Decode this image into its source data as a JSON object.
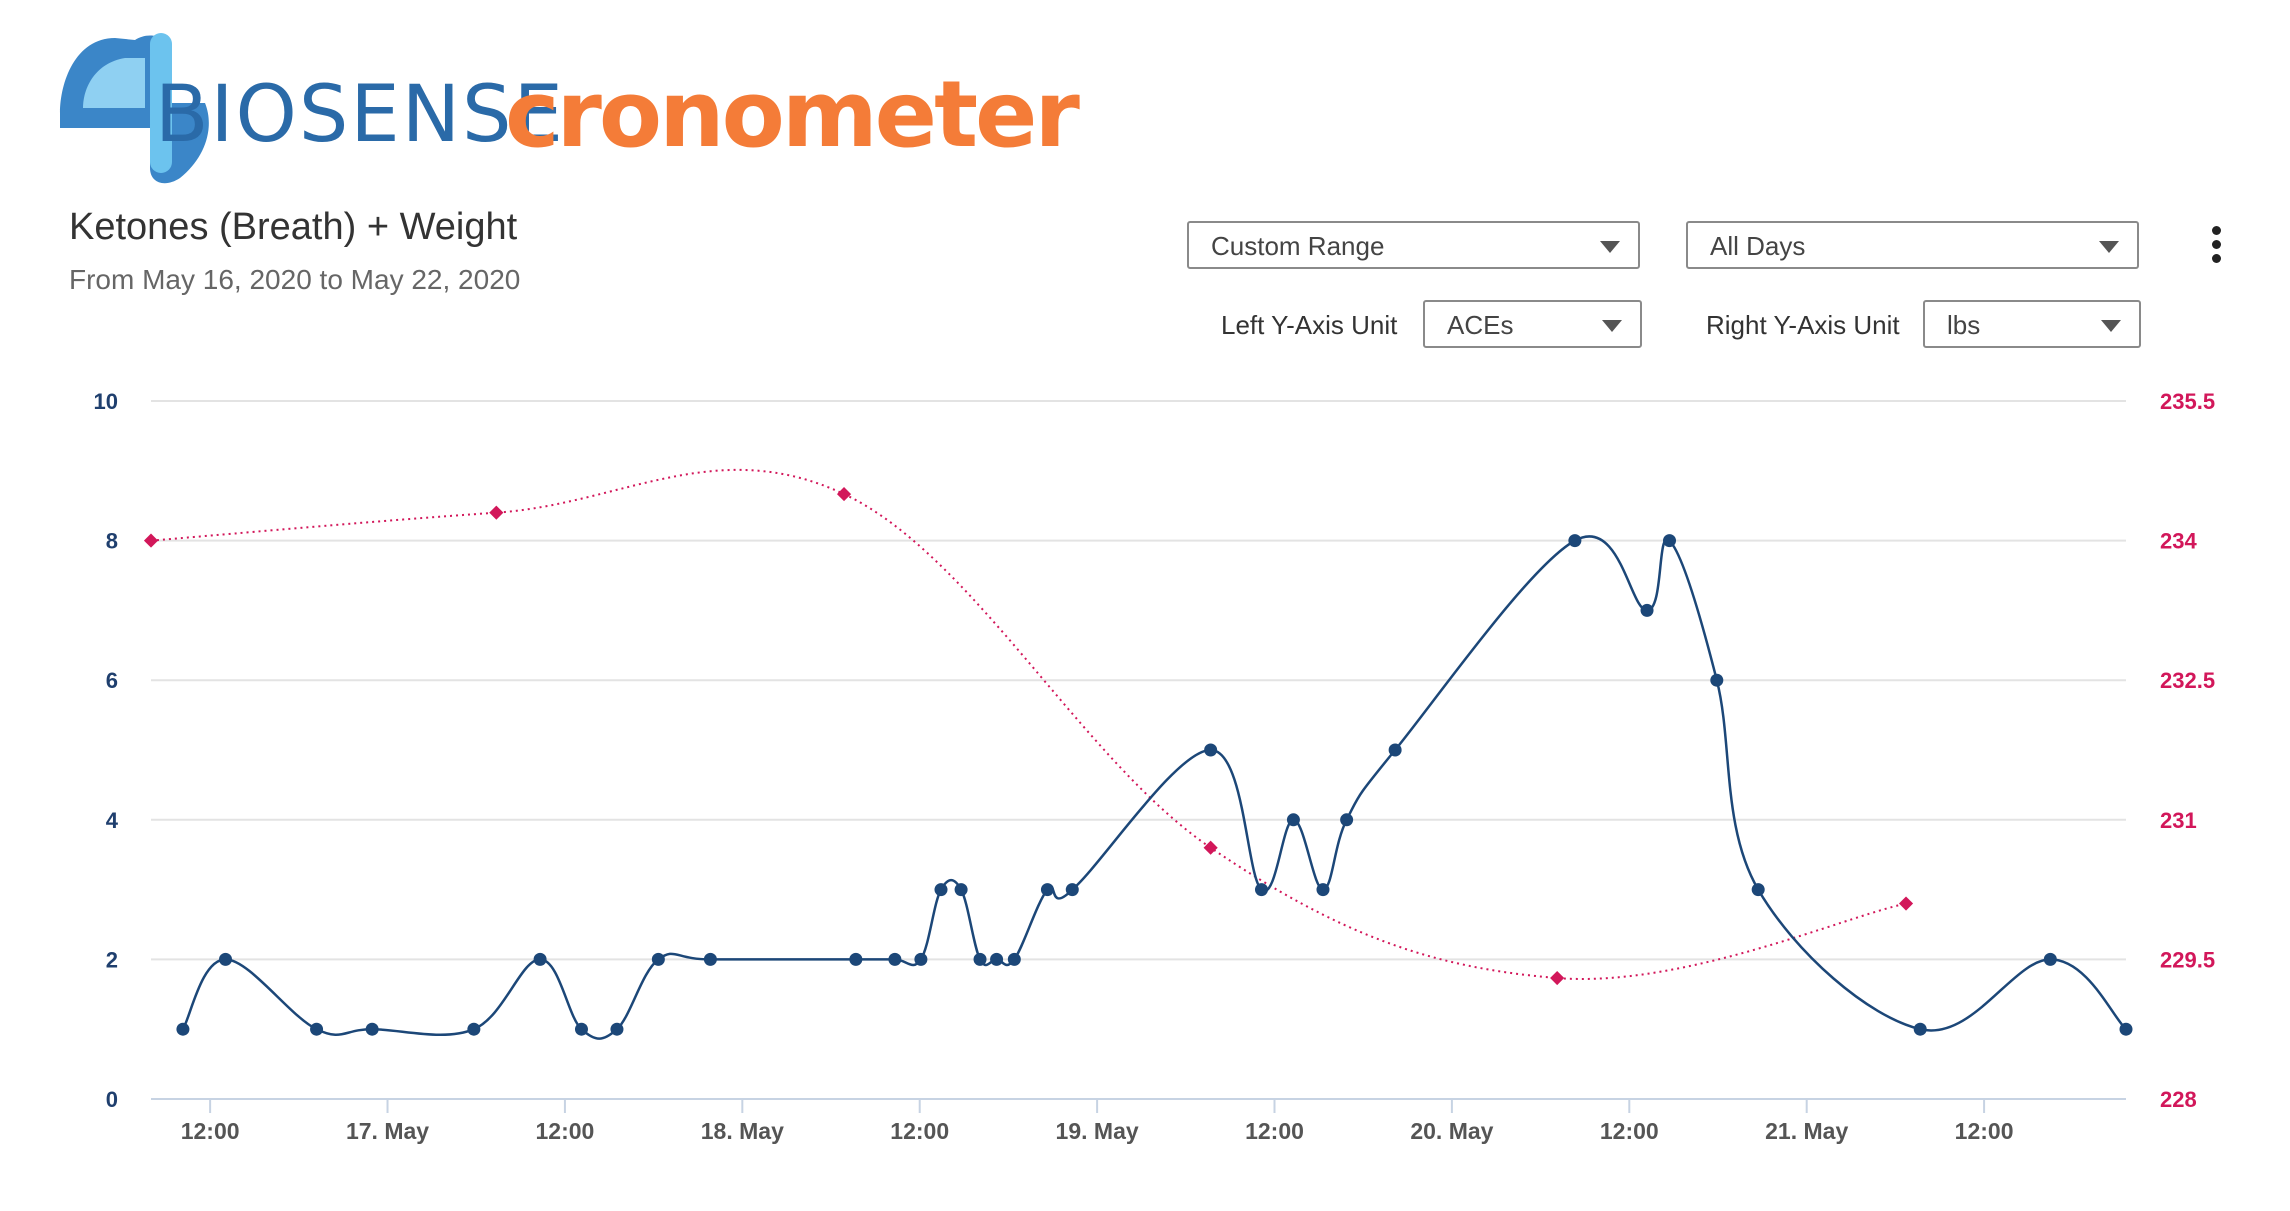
{
  "brand": {
    "biosense": "BIOSENSE",
    "cronometer": "cronometer"
  },
  "header": {
    "title": "Ketones (Breath) + Weight",
    "subtitle": "From May 16, 2020 to May 22, 2020"
  },
  "controls": {
    "range_select": "Custom Range",
    "days_select": "All Days",
    "left_unit_label": "Left Y-Axis Unit",
    "left_unit_value": "ACEs",
    "right_unit_label": "Right Y-Axis Unit",
    "right_unit_value": "lbs",
    "menu_icon": "kebab-menu-icon"
  },
  "colors": {
    "ketones": "#1c4778",
    "weight": "#d2175a",
    "grid": "#e3e3e3",
    "axis": "#c7d3e3"
  },
  "chart_data": {
    "type": "line",
    "title": "Ketones (Breath) + Weight",
    "x_axis": {
      "type": "datetime",
      "min_hours": 0,
      "max_hours": 167.0,
      "ticks": [
        {
          "hours": 5,
          "label": "12:00"
        },
        {
          "hours": 20,
          "label": "17. May"
        },
        {
          "hours": 35,
          "label": "12:00"
        },
        {
          "hours": 50,
          "label": "18. May"
        },
        {
          "hours": 65,
          "label": "12:00"
        },
        {
          "hours": 80,
          "label": "19. May"
        },
        {
          "hours": 95,
          "label": "12:00"
        },
        {
          "hours": 110,
          "label": "20. May"
        },
        {
          "hours": 125,
          "label": "12:00"
        },
        {
          "hours": 140,
          "label": "21. May"
        },
        {
          "hours": 155,
          "label": "12:00"
        }
      ]
    },
    "y_left": {
      "unit": "ACEs",
      "range": [
        0,
        10
      ],
      "ticks": [
        "0",
        "2",
        "4",
        "6",
        "8",
        "10"
      ]
    },
    "y_right": {
      "unit": "lbs",
      "range": [
        228,
        235.5
      ],
      "ticks": [
        "228",
        "229.5",
        "231",
        "232.5",
        "234",
        "235.5"
      ]
    },
    "grid": true,
    "series": [
      {
        "axis": "left",
        "style": "solid-spline",
        "points": [
          [
            2.7,
            1
          ],
          [
            6.3,
            2
          ],
          [
            14.0,
            1
          ],
          [
            18.7,
            1
          ],
          [
            27.3,
            1
          ],
          [
            32.9,
            2
          ],
          [
            36.4,
            1
          ],
          [
            39.4,
            1
          ],
          [
            42.9,
            2
          ],
          [
            47.3,
            2
          ],
          [
            59.6,
            2
          ],
          [
            62.9,
            2
          ],
          [
            65.1,
            2
          ],
          [
            66.8,
            3
          ],
          [
            68.5,
            3
          ],
          [
            70.1,
            2
          ],
          [
            71.5,
            2
          ],
          [
            73.0,
            2
          ],
          [
            75.8,
            3
          ],
          [
            77.9,
            3
          ],
          [
            89.6,
            5
          ],
          [
            93.9,
            3
          ],
          [
            96.6,
            4
          ],
          [
            99.1,
            3
          ],
          [
            101.1,
            4
          ],
          [
            105.2,
            5
          ],
          [
            120.4,
            8
          ],
          [
            126.5,
            7
          ],
          [
            128.4,
            8
          ],
          [
            132.4,
            6
          ],
          [
            135.9,
            3
          ],
          [
            149.6,
            1
          ],
          [
            160.6,
            2
          ],
          [
            167.0,
            1
          ]
        ]
      },
      {
        "axis": "right",
        "style": "dotted-spline",
        "points": [
          [
            0,
            234.0
          ],
          [
            29.2,
            234.3
          ],
          [
            58.6,
            234.5
          ],
          [
            89.6,
            230.7
          ],
          [
            118.9,
            229.3
          ],
          [
            148.4,
            230.1
          ]
        ]
      }
    ]
  }
}
